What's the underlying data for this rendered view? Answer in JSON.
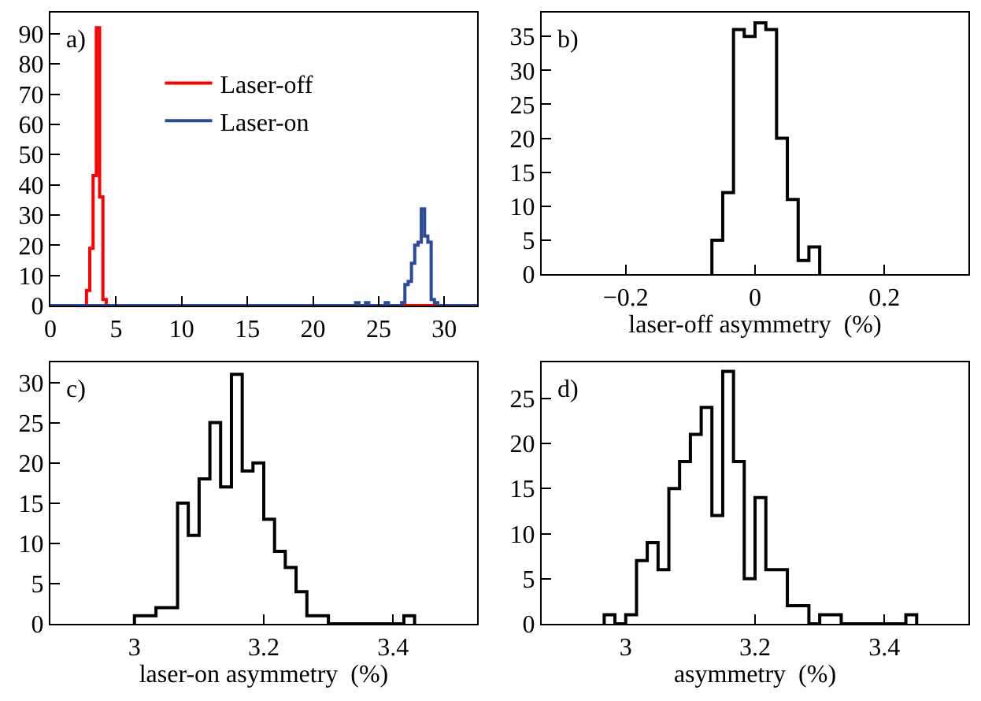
{
  "chart_data": [
    {
      "type": "histogram",
      "annotations": [
        "a)"
      ],
      "legend": "top",
      "xlim": [
        0,
        32.5
      ],
      "xticks": [
        0,
        5,
        10,
        15,
        20,
        25,
        30
      ],
      "ylim": [
        0,
        97
      ],
      "yticks": [
        0,
        10,
        20,
        30,
        40,
        50,
        60,
        70,
        80,
        90
      ],
      "bins": [
        0,
        0.25,
        0.5,
        0.75,
        1,
        1.25,
        1.5,
        1.75,
        2,
        2.25,
        2.5,
        2.75,
        3,
        3.25,
        3.5,
        3.75,
        4,
        4.25,
        4.5,
        4.75,
        5,
        5.25,
        5.5,
        5.75,
        6,
        6.25,
        6.5,
        6.75,
        7,
        7.25,
        7.5,
        7.75,
        8,
        8.25,
        8.5,
        8.75,
        9,
        9.25,
        9.5,
        9.75,
        10,
        10.25,
        10.5,
        10.75,
        11,
        11.25,
        11.5,
        11.75,
        12,
        12.25,
        12.5,
        12.75,
        13,
        13.25,
        13.5,
        13.75,
        14,
        14.25,
        14.5,
        14.75,
        15,
        15.25,
        15.5,
        15.75,
        16,
        16.25,
        16.5,
        16.75,
        17,
        17.25,
        17.5,
        17.75,
        18,
        18.25,
        18.5,
        18.75,
        19,
        19.25,
        19.5,
        19.75,
        20,
        20.25,
        20.5,
        20.75,
        21,
        21.25,
        21.5,
        21.75,
        22,
        22.25,
        22.5,
        22.75,
        23,
        23.25,
        23.5,
        23.75,
        24,
        24.25,
        24.5,
        24.75,
        25,
        25.25,
        25.5,
        25.75,
        26,
        26.25,
        26.5,
        26.75,
        27,
        27.25,
        27.5,
        27.75,
        28,
        28.25,
        28.5,
        28.75,
        29,
        29.25,
        29.5,
        29.75,
        30,
        30.25,
        30.5,
        30.75,
        31,
        31.25,
        31.5,
        31.75,
        32,
        32.25,
        32.5
      ],
      "series": [
        {
          "name": "Laser-off",
          "color": "#ff0000",
          "values": [
            0,
            0,
            0,
            0,
            0,
            0,
            0,
            0,
            0,
            0,
            0,
            5,
            19,
            43,
            92,
            36,
            2,
            0,
            0,
            0,
            0,
            0,
            0,
            0,
            0,
            0,
            0,
            0,
            0,
            0,
            0,
            0,
            0,
            0,
            0,
            0,
            0,
            0,
            0,
            0,
            0,
            0,
            0,
            0,
            0,
            0,
            0,
            0,
            0,
            0,
            0,
            0,
            0,
            0,
            0,
            0,
            0,
            0,
            0,
            0,
            0,
            0,
            0,
            0,
            0,
            0,
            0,
            0,
            0,
            0,
            0,
            0,
            0,
            0,
            0,
            0,
            0,
            0,
            0,
            0,
            0,
            0,
            0,
            0,
            0,
            0,
            0,
            0,
            0,
            0,
            0,
            0,
            0,
            0,
            0,
            0,
            0,
            0,
            0,
            0,
            0,
            0,
            0,
            0,
            0,
            0,
            0,
            0,
            0,
            0,
            0,
            0,
            0,
            0,
            0,
            0,
            0,
            0,
            0,
            0,
            0,
            0,
            0,
            0,
            0,
            0,
            0,
            0,
            0,
            0
          ]
        },
        {
          "name": "Laser-on",
          "color": "#2a4b9b",
          "values": [
            0,
            0,
            0,
            0,
            0,
            0,
            0,
            0,
            0,
            0,
            0,
            0,
            0,
            0,
            0,
            0,
            0,
            0,
            0,
            0,
            0,
            0,
            0,
            0,
            0,
            0,
            0,
            0,
            0,
            0,
            0,
            0,
            0,
            0,
            0,
            0,
            0,
            0,
            0,
            0,
            0,
            0,
            0,
            0,
            0,
            0,
            0,
            0,
            0,
            0,
            0,
            0,
            0,
            0,
            0,
            0,
            0,
            0,
            0,
            0,
            0,
            0,
            0,
            0,
            0,
            0,
            0,
            0,
            0,
            0,
            0,
            0,
            0,
            0,
            0,
            0,
            0,
            0,
            0,
            0,
            0,
            0,
            0,
            0,
            0,
            0,
            0,
            0,
            0,
            0,
            0,
            0,
            0,
            1,
            0,
            0,
            1,
            0,
            0,
            0,
            0,
            0,
            1,
            0,
            0,
            0,
            0,
            1,
            7,
            8,
            14,
            20,
            21,
            32,
            23,
            21,
            2,
            1,
            0,
            0,
            0,
            0,
            0,
            0,
            0,
            0,
            0,
            0,
            0,
            0
          ]
        }
      ]
    },
    {
      "type": "histogram",
      "annotations": [
        "b)"
      ],
      "xlabel": "laser-off asymmetry  (%)",
      "color": "#000000",
      "xlim": [
        -0.33,
        0.33
      ],
      "xticks": [
        {
          "value": -0.2,
          "label": "−0.2"
        },
        0,
        0.2
      ],
      "ylim": [
        0,
        38.5
      ],
      "yticks": [
        0,
        5,
        10,
        15,
        20,
        25,
        30,
        35
      ],
      "bins": [
        -0.0667,
        -0.05,
        -0.0333,
        -0.0167,
        0,
        0.0167,
        0.0333,
        0.05,
        0.0667,
        0.0833,
        0.1
      ],
      "values": [
        5,
        12,
        36,
        35,
        37,
        36,
        20,
        11,
        2,
        4
      ]
    },
    {
      "type": "histogram",
      "annotations": [
        "c)"
      ],
      "xlabel": "laser-on asymmetry  (%)",
      "color": "#000000",
      "xlim": [
        2.87,
        3.53
      ],
      "xticks": [
        3,
        3.2,
        3.4
      ],
      "ylim": [
        0,
        32.5
      ],
      "yticks": [
        0,
        5,
        10,
        15,
        20,
        25,
        30
      ],
      "bins": [
        3,
        3.0167,
        3.0333,
        3.05,
        3.0667,
        3.0833,
        3.1,
        3.1167,
        3.1333,
        3.15,
        3.1667,
        3.1833,
        3.2,
        3.2167,
        3.2333,
        3.25,
        3.2667,
        3.2833,
        3.3,
        3.3167,
        3.3333,
        3.35,
        3.3667,
        3.3833,
        3.4,
        3.4167,
        3.4333
      ],
      "values": [
        1,
        1,
        2,
        2,
        15,
        11,
        18,
        25,
        17,
        31,
        19,
        20,
        13,
        9,
        7,
        4,
        1,
        1,
        0,
        0,
        0,
        0,
        0,
        0,
        0,
        1
      ]
    },
    {
      "type": "histogram",
      "annotations": [
        "d)"
      ],
      "xlabel": "asymmetry  (%)",
      "color": "#000000",
      "xlim": [
        2.87,
        3.53
      ],
      "xticks": [
        3,
        3.2,
        3.4
      ],
      "ylim": [
        0,
        29
      ],
      "yticks": [
        0,
        5,
        10,
        15,
        20,
        25
      ],
      "bins": [
        2.9667,
        2.9833,
        3,
        3.0167,
        3.0333,
        3.05,
        3.0667,
        3.0833,
        3.1,
        3.1167,
        3.1333,
        3.15,
        3.1667,
        3.1833,
        3.2,
        3.2167,
        3.2333,
        3.25,
        3.2667,
        3.2833,
        3.3,
        3.3167,
        3.3333,
        3.35,
        3.3667,
        3.3833,
        3.4,
        3.4167,
        3.4333,
        3.45
      ],
      "values": [
        1,
        0,
        1,
        7,
        9,
        6,
        15,
        18,
        21,
        24,
        12,
        28,
        18,
        5,
        14,
        6,
        6,
        2,
        2,
        0,
        1,
        1,
        0,
        0,
        0,
        0,
        0,
        0,
        1
      ]
    }
  ]
}
